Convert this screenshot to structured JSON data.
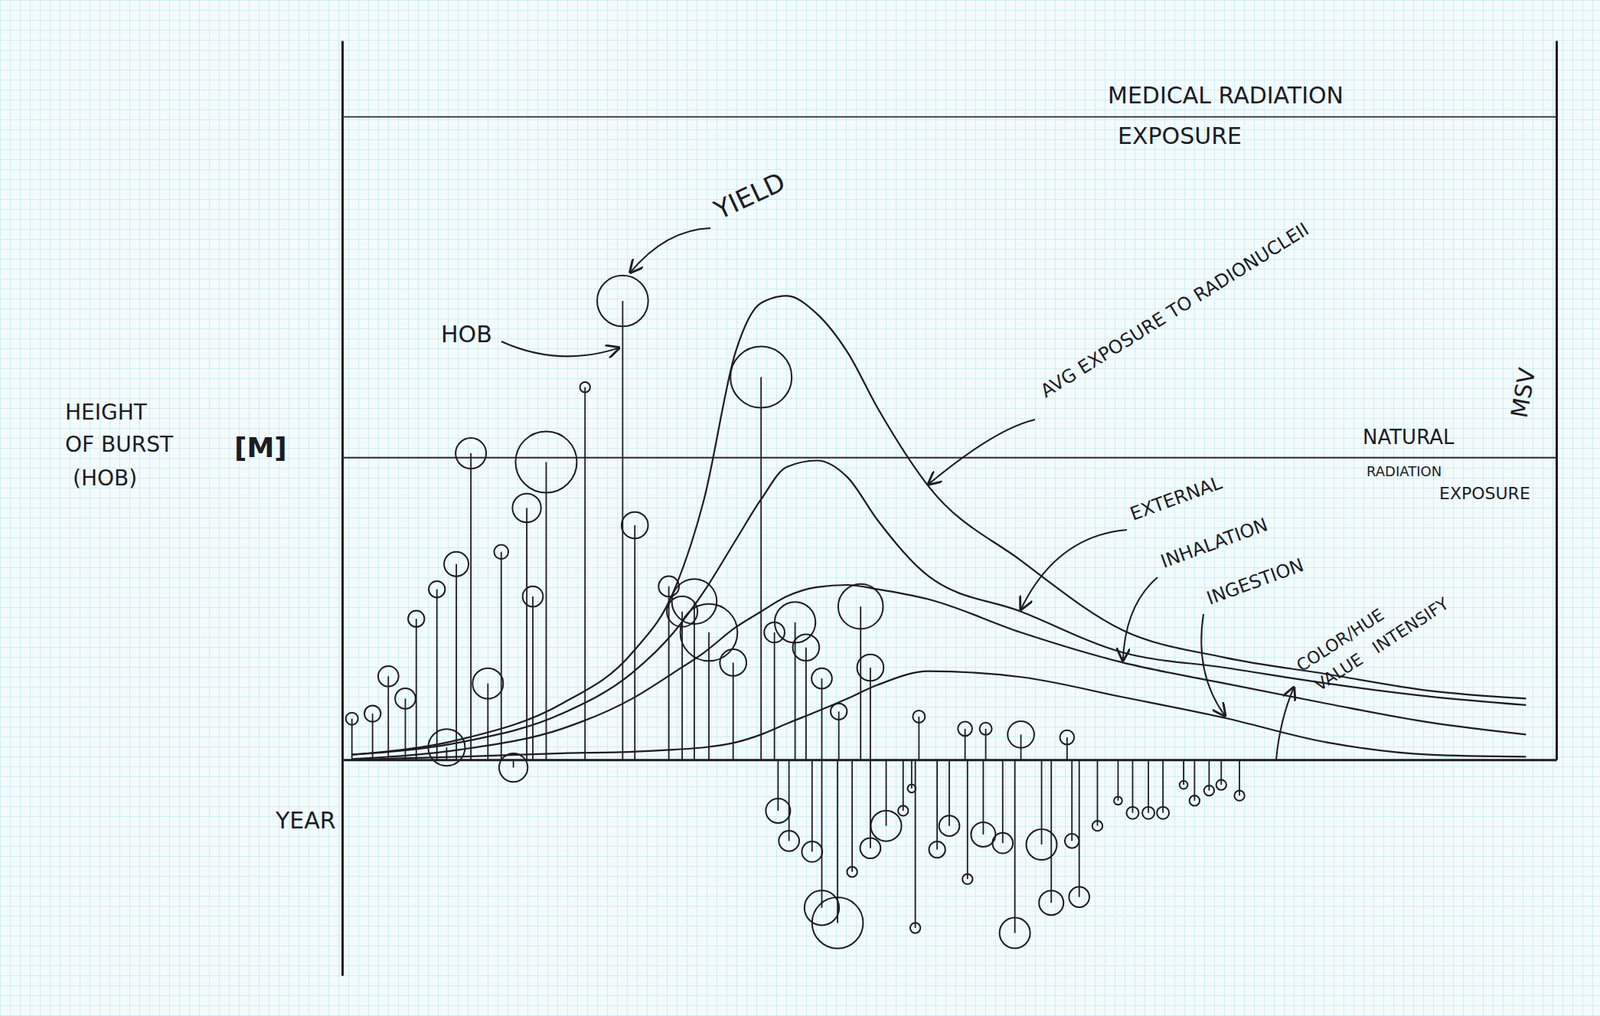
{
  "chart_data": {
    "type": "lollipop",
    "x_label": "YEAR",
    "y_label": [
      "HEIGHT",
      "OF BURST",
      "(HOB)"
    ],
    "y_unit": "[M]",
    "y2_label": "MSV",
    "xlim": [
      0,
      100
    ],
    "ylim": [
      -30,
      100
    ],
    "y2lim": [
      0,
      100
    ],
    "tick_labels": false,
    "grid": false,
    "bursts": {
      "color": "#1c1c24",
      "x": [
        0.8,
        2.5,
        3.8,
        5.2,
        6.1,
        7.8,
        8.6,
        9.4,
        10.6,
        12.0,
        13.1,
        14.1,
        15.2,
        15.7,
        16.8,
        20.0,
        23.1,
        24.1,
        26.9,
        28.0,
        29.0,
        30.2,
        32.2,
        34.5,
        35.6,
        37.3,
        38.2,
        39.5,
        40.9,
        42.7,
        43.5,
        47.5,
        51.3,
        53.0,
        55.9,
        59.7,
        35.9,
        36.8,
        38.7,
        39.5,
        40.8,
        42.0,
        43.5,
        44.8,
        46.2,
        46.9,
        47.2,
        49.0,
        50.0,
        51.5,
        52.8,
        54.4,
        55.4,
        57.6,
        58.4,
        60.1,
        60.7,
        62.2,
        63.9,
        65.1,
        66.4,
        67.6,
        69.3,
        70.2,
        71.4,
        72.4,
        73.9
      ],
      "hob": [
        5.7,
        6.4,
        11.6,
        8.5,
        19.6,
        23.7,
        1.7,
        27.2,
        42.6,
        10.6,
        28.9,
        -1.1,
        35.0,
        22.7,
        41.4,
        51.8,
        63.8,
        32.6,
        24.1,
        20.6,
        22.0,
        17.7,
        13.5,
        53.2,
        17.7,
        19.1,
        15.6,
        11.3,
        6.7,
        21.3,
        12.8,
        6.0,
        4.3,
        4.3,
        3.5,
        3.1,
        -7.1,
        -11.3,
        -12.8,
        -20.6,
        -22.7,
        -15.6,
        -12.3,
        -9.2,
        -7.1,
        -4.0,
        -23.4,
        -12.5,
        -9.2,
        -16.6,
        -10.4,
        -11.6,
        -24.1,
        -11.8,
        -19.9,
        -11.3,
        -19.1,
        -9.2,
        -5.7,
        -7.4,
        -7.4,
        -7.4,
        -3.5,
        -5.7,
        -4.3,
        -3.5,
        -5.0
      ],
      "yield": [
        36,
        64,
        100,
        100,
        64,
        64,
        324,
        144,
        225,
        225,
        49,
        196,
        196,
        100,
        900,
        25,
        625,
        169,
        100,
        225,
        484,
        784,
        169,
        900,
        100,
        400,
        169,
        100,
        64,
        484,
        169,
        36,
        49,
        36,
        169,
        49,
        144,
        100,
        100,
        289,
        625,
        25,
        100,
        225,
        25,
        16,
        25,
        64,
        100,
        25,
        144,
        100,
        225,
        225,
        144,
        49,
        100,
        25,
        16,
        36,
        36,
        36,
        16,
        25,
        25,
        25,
        25
      ]
    },
    "x": [
      0.8,
      9.7,
      18.1,
      23.9,
      27.3,
      29.8,
      32.4,
      34.5,
      36.6,
      39.1,
      41.6,
      44.1,
      48.3,
      55.9,
      64.3,
      72.7,
      81.1,
      89.5,
      97.5
    ],
    "series": [
      {
        "name": "AVG EXPOSURE TO RADIONUCLEII",
        "type": "line",
        "axis": "y2",
        "color": "#1c1c24",
        "values": [
          0.7,
          2.8,
          7.8,
          14.9,
          23.4,
          36.2,
          56.7,
          63.5,
          64.5,
          62.0,
          56.7,
          48.9,
          38.0,
          27.7,
          18.0,
          14.2,
          11.9,
          9.6,
          8.5
        ]
      },
      {
        "name": "EXTERNAL",
        "type": "line",
        "axis": "y2",
        "color": "#1c1c24",
        "values": [
          0.7,
          2.4,
          6.4,
          12.1,
          17.7,
          23.4,
          30.5,
          36.2,
          40.7,
          41.6,
          39.3,
          33.3,
          25.5,
          20.6,
          14.9,
          12.8,
          10.6,
          8.8,
          7.6
        ]
      },
      {
        "name": "INHALATION",
        "type": "line",
        "axis": "y2",
        "color": "#1c1c24",
        "values": [
          0.1,
          1.4,
          4.3,
          8.5,
          12.1,
          14.9,
          18.4,
          20.6,
          22.7,
          24.0,
          24.3,
          23.7,
          22.3,
          17.7,
          13.5,
          10.6,
          7.8,
          5.2,
          3.5
        ]
      },
      {
        "name": "INGESTION",
        "type": "line",
        "axis": "y2",
        "color": "#1c1c24",
        "values": [
          0,
          0.4,
          0.9,
          1.1,
          1.4,
          1.7,
          2.4,
          3.5,
          5.0,
          6.7,
          8.5,
          10.4,
          12.3,
          11.5,
          8.7,
          5.8,
          2.4,
          0.7,
          0.4
        ]
      }
    ],
    "reference_lines": [
      {
        "label": [
          "MEDICAL RADIATION",
          "EXPOSURE"
        ],
        "value": 89.4,
        "axis": "y2",
        "color": "#2a2a33"
      },
      {
        "label": [
          "NATURAL",
          "RADIATION",
          "EXPOSURE"
        ],
        "value": 42,
        "axis": "y2",
        "color": "#2a2a33"
      }
    ],
    "annotations": [
      {
        "text": "YIELD"
      },
      {
        "text": "HOB"
      },
      {
        "text": [
          "COLOR/HUE",
          "VALUE",
          "INTENSIFY"
        ]
      }
    ]
  }
}
